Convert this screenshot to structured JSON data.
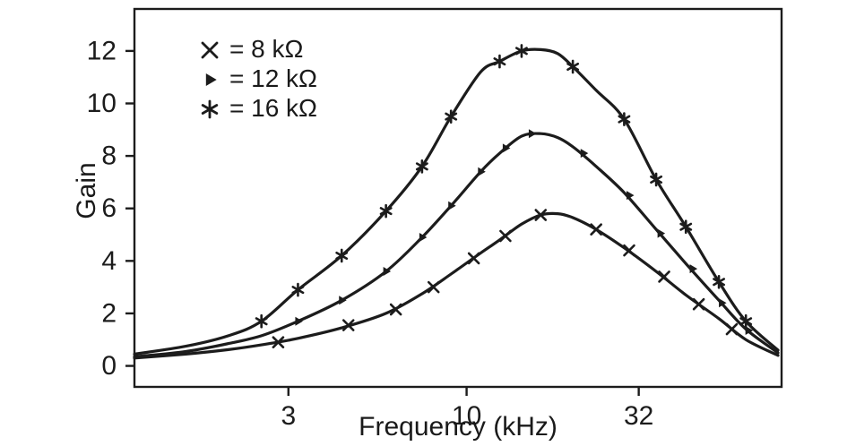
{
  "chart_data": {
    "type": "line",
    "title": "",
    "xlabel": "Frequency (kHz)",
    "ylabel": "Gain",
    "x_scale": "log",
    "x_range": [
      1.06,
      84
    ],
    "y_range": [
      -0.8,
      13.6
    ],
    "x_ticks": [
      "3",
      "10",
      "32"
    ],
    "x_tick_values": [
      3,
      10,
      32
    ],
    "y_ticks": [
      "0",
      "2",
      "4",
      "6",
      "8",
      "10",
      "12"
    ],
    "y_tick_values": [
      0,
      2,
      4,
      6,
      8,
      10,
      12
    ],
    "grid": false,
    "line_color": "#1c1c1c",
    "background_color": "#ffffff",
    "legend_position": "upper-left-inside",
    "legend": [
      {
        "marker": "x",
        "label": "= 8 kΩ"
      },
      {
        "marker": "triangle-right",
        "label": "= 12 kΩ"
      },
      {
        "marker": "asterisk",
        "label": "= 16 kΩ"
      }
    ],
    "series": [
      {
        "name": "8 kΩ",
        "marker": "x",
        "peak": {
          "frequency_khz": 16.5,
          "gain": 5.8
        },
        "x": [
          1.06,
          1.5,
          2,
          2.5,
          3.2,
          4.3,
          5.8,
          7.4,
          9,
          11,
          12.5,
          14.5,
          16.5,
          18.5,
          20.5,
          24,
          29,
          36,
          44,
          55,
          66,
          82
        ],
        "y": [
          0.3,
          0.45,
          0.62,
          0.8,
          1.05,
          1.45,
          2.0,
          2.75,
          3.5,
          4.3,
          4.8,
          5.4,
          5.75,
          5.8,
          5.65,
          5.2,
          4.5,
          3.6,
          2.7,
          1.8,
          1.0,
          0.4
        ],
        "markers": [
          [
            2.8,
            0.9
          ],
          [
            4.5,
            1.55
          ],
          [
            6.2,
            2.15
          ],
          [
            8,
            3.0
          ],
          [
            10.5,
            4.1
          ],
          [
            13,
            4.95
          ],
          [
            16.5,
            5.75
          ],
          [
            24,
            5.2
          ],
          [
            30,
            4.4
          ],
          [
            38,
            3.4
          ],
          [
            48,
            2.35
          ],
          [
            60,
            1.4
          ]
        ]
      },
      {
        "name": "12 kΩ",
        "marker": "triangle-right",
        "peak": {
          "frequency_khz": 16,
          "gain": 8.85
        },
        "x": [
          1.06,
          1.5,
          2,
          2.5,
          3.2,
          4.3,
          5.8,
          7.4,
          9,
          11,
          12.5,
          14.5,
          16.5,
          18.5,
          20.5,
          24,
          29,
          36,
          44,
          55,
          66,
          82
        ],
        "y": [
          0.35,
          0.55,
          0.85,
          1.15,
          1.7,
          2.5,
          3.6,
          4.9,
          6.1,
          7.4,
          8.1,
          8.75,
          8.85,
          8.7,
          8.35,
          7.6,
          6.6,
          5.2,
          3.9,
          2.5,
          1.4,
          0.5
        ],
        "markers": [
          [
            3.2,
            1.7
          ],
          [
            4.3,
            2.5
          ],
          [
            5.8,
            3.6
          ],
          [
            7.4,
            4.9
          ],
          [
            9,
            6.1
          ],
          [
            11,
            7.4
          ],
          [
            13,
            8.3
          ],
          [
            15.5,
            8.85
          ],
          [
            22,
            8.1
          ],
          [
            30,
            6.5
          ],
          [
            37,
            5.05
          ],
          [
            46,
            3.7
          ],
          [
            56,
            2.4
          ],
          [
            67,
            1.35
          ]
        ]
      },
      {
        "name": "16 kΩ",
        "marker": "asterisk",
        "peak": {
          "frequency_khz": 16,
          "gain": 12.05
        },
        "x": [
          1.06,
          1.5,
          2,
          2.5,
          3.2,
          4.3,
          5.8,
          7.4,
          9,
          11,
          12.5,
          14.5,
          16.5,
          18.5,
          20.5,
          24,
          29,
          36,
          44,
          55,
          66,
          82
        ],
        "y": [
          0.45,
          0.75,
          1.15,
          1.7,
          2.9,
          4.2,
          5.9,
          7.6,
          9.5,
          11.2,
          11.6,
          12.0,
          12.05,
          11.9,
          11.4,
          10.5,
          9.4,
          7.1,
          5.3,
          3.2,
          1.7,
          0.6
        ],
        "markers": [
          [
            2.5,
            1.7
          ],
          [
            3.2,
            2.9
          ],
          [
            4.3,
            4.2
          ],
          [
            5.8,
            5.9
          ],
          [
            7.4,
            7.6
          ],
          [
            9,
            9.5
          ],
          [
            12.5,
            11.6
          ],
          [
            14.5,
            12.0
          ],
          [
            20.5,
            11.4
          ],
          [
            29,
            9.4
          ],
          [
            36,
            7.1
          ],
          [
            44,
            5.3
          ],
          [
            55,
            3.2
          ],
          [
            66,
            1.7
          ]
        ]
      }
    ]
  }
}
